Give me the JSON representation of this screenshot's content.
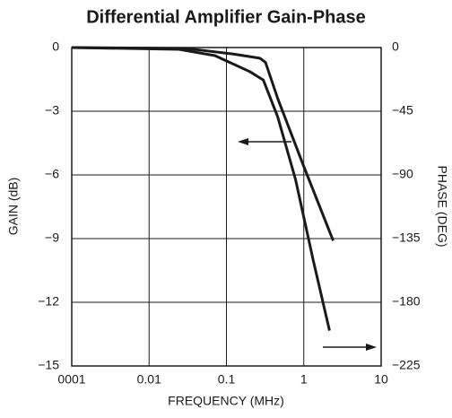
{
  "chart_data": {
    "type": "line",
    "title": "Differential Amplifier Gain-Phase",
    "xlabel": "FREQUENCY (MHz)",
    "ylabel": "GAIN (dB)",
    "y2label": "PHASE (DEG)",
    "xlog": true,
    "grid": true,
    "xlim": [
      0.001,
      10
    ],
    "xticks": [
      {
        "value": 0.001,
        "label": "0001"
      },
      0.01,
      0.1,
      1,
      10
    ],
    "ylim": [
      -15,
      0
    ],
    "yticks": [
      0,
      {
        "value": -3,
        "label": "−3"
      },
      {
        "value": -6,
        "label": "−6"
      },
      {
        "value": -9,
        "label": "−9"
      },
      {
        "value": -12,
        "label": "−12"
      },
      {
        "value": -15,
        "label": "−15"
      }
    ],
    "y2lim": [
      -225,
      0
    ],
    "y2ticks": [
      0,
      {
        "value": -45,
        "label": "−45"
      },
      {
        "value": -90,
        "label": "−90"
      },
      {
        "value": -135,
        "label": "−135"
      },
      {
        "value": -180,
        "label": "−180"
      },
      {
        "value": -225,
        "label": "−225"
      }
    ],
    "series": [
      {
        "color": "#1a1a1a",
        "x": [
          0.001,
          0.03,
          0.12,
          0.27,
          0.32,
          0.46,
          1.0,
          2.4
        ],
        "values": [
          0,
          -0.04,
          -0.3,
          -0.5,
          -0.7,
          -2.4,
          -5.6,
          -9.1
        ]
      },
      {
        "color": "#1a1a1a",
        "axis": "y2",
        "x": [
          0.001,
          0.0244,
          0.071,
          0.2,
          0.3,
          0.46,
          0.78,
          1.32,
          2.15
        ],
        "values": [
          0,
          -1.3,
          -5.7,
          -17,
          -23,
          -49,
          -93,
          -150,
          -200
        ]
      }
    ]
  }
}
